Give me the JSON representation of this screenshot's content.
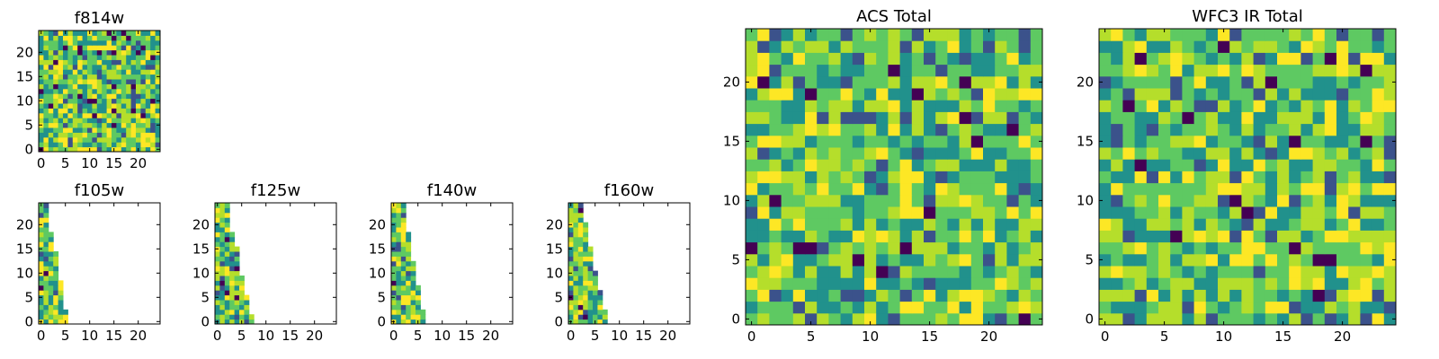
{
  "chart_data": [
    {
      "type": "heatmap",
      "title": "f814w",
      "grid_size": 25,
      "xlim": [
        -0.5,
        24.5
      ],
      "ylim": [
        -0.5,
        24.5
      ],
      "x_ticks": [
        0,
        5,
        10,
        15,
        20
      ],
      "y_ticks": [
        0,
        5,
        10,
        15,
        20
      ],
      "tick_labels": [
        "0",
        "5",
        "10",
        "15",
        "20"
      ],
      "colormap": "viridis",
      "filled_rows": "all",
      "filled_columns": 25
    },
    {
      "type": "heatmap",
      "title": "f105w",
      "grid_size": 25,
      "xlim": [
        -0.5,
        24.5
      ],
      "ylim": [
        -0.5,
        24.5
      ],
      "x_ticks": [
        0,
        5,
        10,
        15,
        20
      ],
      "y_ticks": [
        0,
        5,
        10,
        15,
        20
      ],
      "tick_labels": [
        "0",
        "5",
        "10",
        "15",
        "20"
      ],
      "colormap": "viridis",
      "filled_width_by_row": [
        6,
        6,
        6,
        5,
        5,
        5,
        5,
        5,
        5,
        4,
        4,
        4,
        4,
        4,
        4,
        3,
        3,
        3,
        3,
        2,
        2,
        2,
        2,
        2,
        2
      ]
    },
    {
      "type": "heatmap",
      "title": "f125w",
      "grid_size": 25,
      "xlim": [
        -0.5,
        24.5
      ],
      "ylim": [
        -0.5,
        24.5
      ],
      "x_ticks": [
        0,
        5,
        10,
        15,
        20
      ],
      "y_ticks": [
        0,
        5,
        10,
        15,
        20
      ],
      "tick_labels": [
        "0",
        "5",
        "10",
        "15",
        "20"
      ],
      "colormap": "viridis",
      "filled_width_by_row": [
        8,
        8,
        7,
        7,
        7,
        7,
        6,
        6,
        6,
        6,
        5,
        5,
        5,
        5,
        5,
        5,
        4,
        4,
        4,
        3,
        3,
        3,
        3,
        3,
        3
      ]
    },
    {
      "type": "heatmap",
      "title": "f140w",
      "grid_size": 25,
      "xlim": [
        -0.5,
        24.5
      ],
      "ylim": [
        -0.5,
        24.5
      ],
      "x_ticks": [
        0,
        5,
        10,
        15,
        20
      ],
      "y_ticks": [
        0,
        5,
        10,
        15,
        20
      ],
      "tick_labels": [
        "0",
        "5",
        "10",
        "15",
        "20"
      ],
      "colormap": "viridis",
      "filled_width_by_row": [
        7,
        7,
        7,
        6,
        6,
        6,
        6,
        6,
        5,
        5,
        5,
        5,
        5,
        4,
        4,
        4,
        4,
        4,
        4,
        3,
        3,
        3,
        3,
        3,
        3
      ]
    },
    {
      "type": "heatmap",
      "title": "f160w",
      "grid_size": 25,
      "xlim": [
        -0.5,
        24.5
      ],
      "ylim": [
        -0.5,
        24.5
      ],
      "x_ticks": [
        0,
        5,
        10,
        15,
        20
      ],
      "y_ticks": [
        0,
        5,
        10,
        15,
        20
      ],
      "tick_labels": [
        "0",
        "5",
        "10",
        "15",
        "20"
      ],
      "colormap": "viridis",
      "filled_width_by_row": [
        8,
        8,
        8,
        7,
        7,
        7,
        7,
        6,
        6,
        6,
        6,
        5,
        5,
        5,
        5,
        5,
        4,
        4,
        4,
        4,
        4,
        3,
        3,
        3,
        3
      ]
    },
    {
      "type": "heatmap",
      "title": "ACS Total",
      "grid_size": 25,
      "xlim": [
        -0.5,
        24.5
      ],
      "ylim": [
        -0.5,
        24.5
      ],
      "x_ticks": [
        0,
        5,
        10,
        15,
        20
      ],
      "y_ticks": [
        0,
        5,
        10,
        15,
        20
      ],
      "tick_labels": [
        "0",
        "5",
        "10",
        "15",
        "20"
      ],
      "colormap": "viridis",
      "filled_rows": "all",
      "filled_columns": 25
    },
    {
      "type": "heatmap",
      "title": "WFC3 IR Total",
      "grid_size": 25,
      "xlim": [
        -0.5,
        24.5
      ],
      "ylim": [
        -0.5,
        24.5
      ],
      "x_ticks": [
        0,
        5,
        10,
        15,
        20
      ],
      "y_ticks": [
        0,
        5,
        10,
        15,
        20
      ],
      "tick_labels": [
        "0",
        "5",
        "10",
        "15",
        "20"
      ],
      "colormap": "viridis",
      "filled_rows": "all",
      "filled_columns": 25
    }
  ],
  "colors": {
    "dark": "#440154",
    "low": "#3b528b",
    "mid": "#21918c",
    "green": "#5ec962",
    "yellowgreen": "#b5de2b",
    "yellow": "#fde725",
    "axis": "#000000",
    "background": "#ffffff"
  }
}
